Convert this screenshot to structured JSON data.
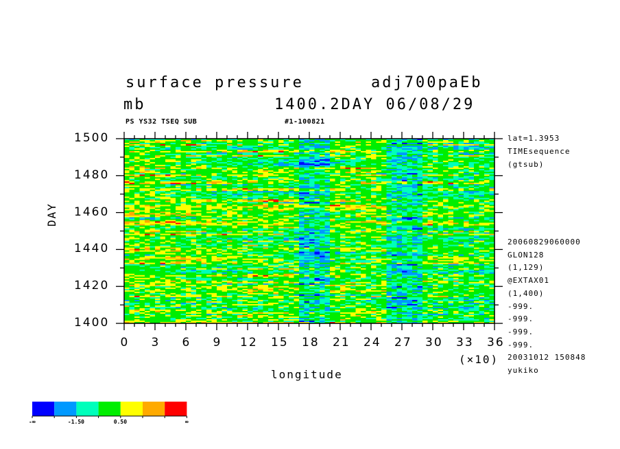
{
  "header": {
    "title_left": "surface pressure",
    "title_right": "adj700paEb",
    "unit": "mb",
    "time_info": "1400.2DAY 06/08/29",
    "sub_left": "PS YS32 TSEQ SUB",
    "sub_right": "#1-100821"
  },
  "side_info": {
    "top": [
      "lat=1.3953",
      "TIMEsequence",
      "(gtsub)"
    ],
    "bottom": [
      "20060829060000",
      "GLON128",
      "(1,129)",
      "@EXTAX01",
      "(1,400)",
      "-999.",
      "-999.",
      "-999.",
      "-999.",
      "20031012 150848",
      "yukiko"
    ]
  },
  "chart_data": {
    "type": "heatmap",
    "title": "surface pressure",
    "xlabel": "longitude",
    "ylabel": "DAY",
    "x_multiplier_label": "(×10)",
    "xlim": [
      0,
      36
    ],
    "ylim": [
      1400,
      1500
    ],
    "x_ticks": [
      "0",
      "3",
      "6",
      "9",
      "12",
      "15",
      "18",
      "21",
      "24",
      "27",
      "30",
      "33",
      "36"
    ],
    "y_ticks": [
      "1400",
      "1420",
      "1440",
      "1460",
      "1480",
      "1500"
    ],
    "colorbar": {
      "colors": [
        "#0000ff",
        "#0099ff",
        "#00ffbb",
        "#00ee00",
        "#ffff00",
        "#ffaa00",
        "#ff0000"
      ],
      "labels": [
        "-∞",
        "-1.50",
        "0.50",
        "∞"
      ]
    }
  }
}
